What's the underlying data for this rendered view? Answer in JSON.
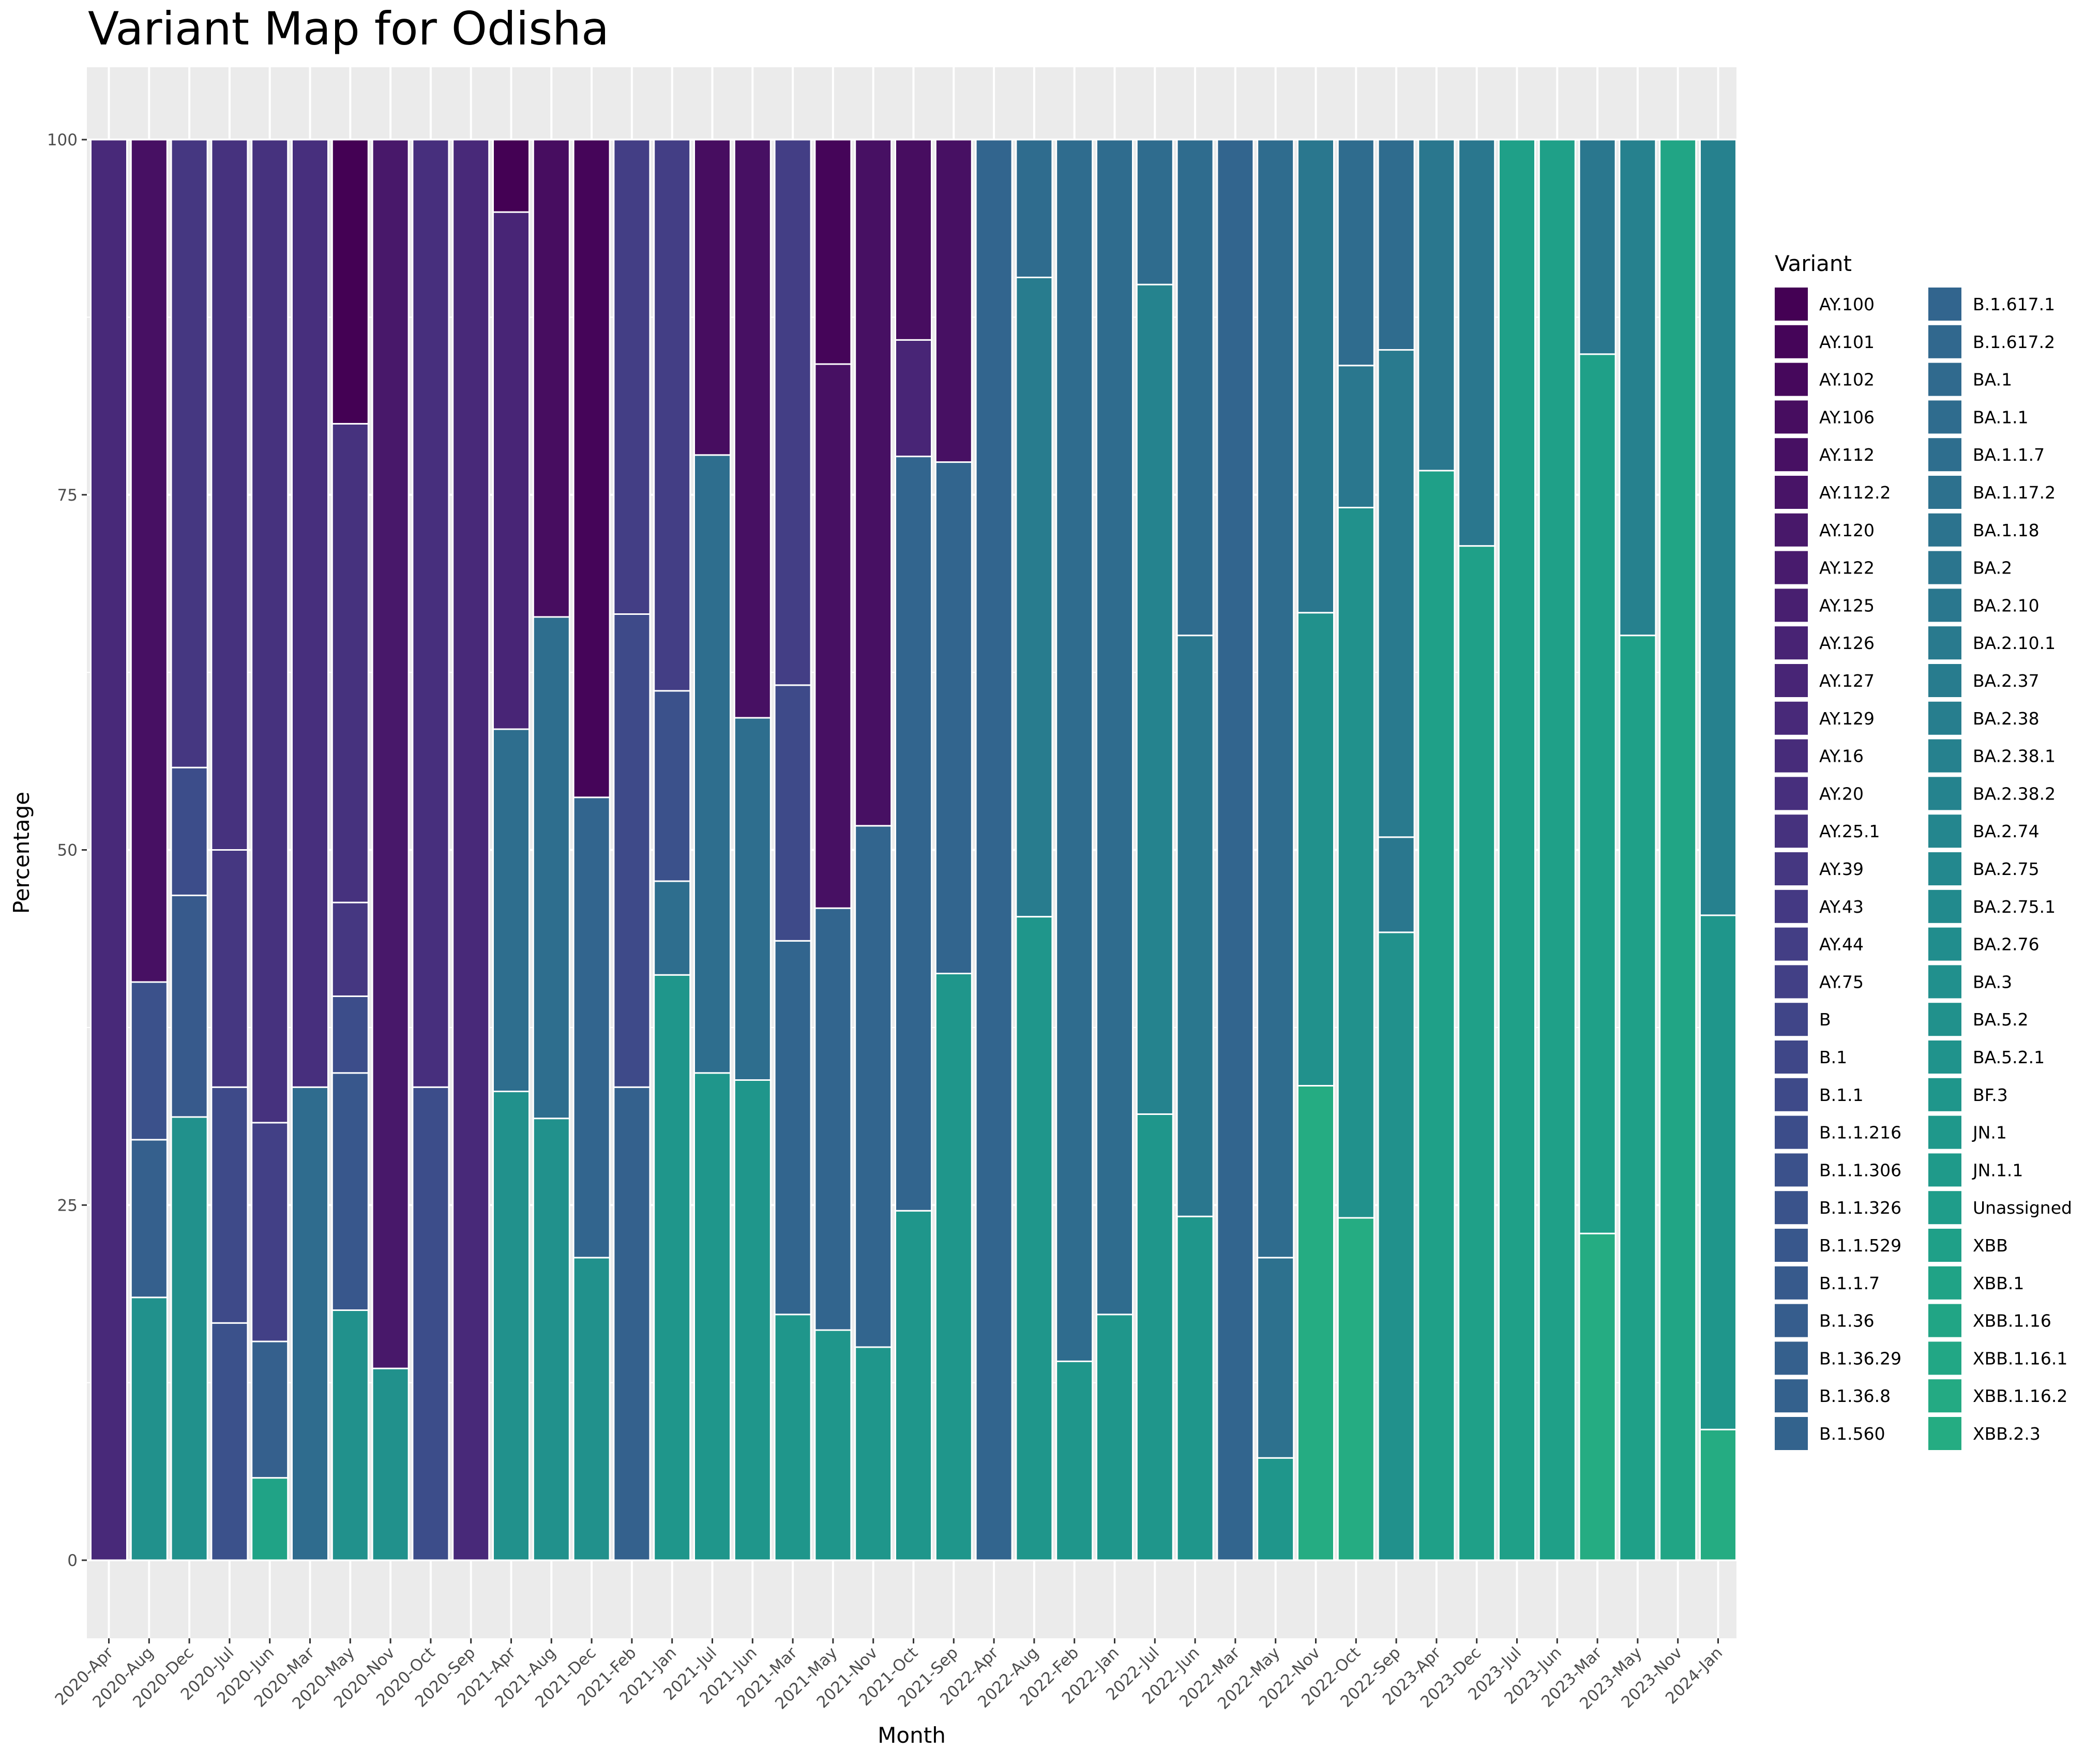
{
  "chart_data": {
    "type": "bar",
    "stacked": true,
    "title": "Variant Map for Odisha",
    "xlabel": "Month",
    "ylabel": "Percentage",
    "ylim": [
      0,
      100
    ],
    "yticks": [
      0,
      25,
      50,
      75,
      100
    ],
    "grid": true,
    "legend_title": "Variant",
    "legend_position": "right",
    "variants": [
      "AY.100",
      "AY.101",
      "AY.102",
      "AY.106",
      "AY.112",
      "AY.112.2",
      "AY.120",
      "AY.122",
      "AY.125",
      "AY.126",
      "AY.127",
      "AY.129",
      "AY.16",
      "AY.20",
      "AY.25.1",
      "AY.39",
      "AY.43",
      "AY.44",
      "AY.75",
      "B",
      "B.1",
      "B.1.1",
      "B.1.1.216",
      "B.1.1.306",
      "B.1.1.326",
      "B.1.1.529",
      "B.1.1.7",
      "B.1.36",
      "B.1.36.29",
      "B.1.36.8",
      "B.1.560",
      "B.1.617.1",
      "B.1.617.2",
      "BA.1",
      "BA.1.1",
      "BA.1.1.7",
      "BA.1.17.2",
      "BA.1.18",
      "BA.2",
      "BA.2.10",
      "BA.2.10.1",
      "BA.2.37",
      "BA.2.38",
      "BA.2.38.1",
      "BA.2.38.2",
      "BA.2.74",
      "BA.2.75",
      "BA.2.75.1",
      "BA.2.76",
      "BA.3",
      "BA.5.2",
      "BA.5.2.1",
      "BF.3",
      "JN.1",
      "JN.1.1",
      "Unassigned",
      "XBB",
      "XBB.1",
      "XBB.1.16",
      "XBB.1.16.1",
      "XBB.1.16.2",
      "XBB.2.3"
    ],
    "colors": [
      "#440154",
      "#450559",
      "#46085c",
      "#470d60",
      "#471063",
      "#481467",
      "#48186a",
      "#481b6d",
      "#481f70",
      "#482374",
      "#482576",
      "#482979",
      "#472c7a",
      "#472f7d",
      "#46327e",
      "#453781",
      "#443983",
      "#433e85",
      "#424086",
      "#404588",
      "#3f4788",
      "#3e4a89",
      "#3c4d8a",
      "#3b518b",
      "#3a538b",
      "#38578c",
      "#375a8c",
      "#365d8d",
      "#35608d",
      "#34618d",
      "#33638d",
      "#32658e",
      "#31688e",
      "#306a8e",
      "#2f6c8e",
      "#2e6e8e",
      "#2d718e",
      "#2c738e",
      "#2b758e",
      "#2a778e",
      "#297a8e",
      "#287c8e",
      "#277e8e",
      "#26818e",
      "#25838e",
      "#24868e",
      "#23888e",
      "#228a8d",
      "#218d8d",
      "#21908d",
      "#21918c",
      "#20938c",
      "#1f968b",
      "#1f988b",
      "#1f9a8a",
      "#1f9d8a",
      "#1fa088",
      "#20a386",
      "#21a585",
      "#22a785",
      "#24aa83",
      "#25ac82"
    ],
    "categories": [
      "2020-Apr",
      "2020-Aug",
      "2020-Dec",
      "2020-Jul",
      "2020-Jun",
      "2020-Mar",
      "2020-May",
      "2020-Nov",
      "2020-Oct",
      "2020-Sep",
      "2021-Apr",
      "2021-Aug",
      "2021-Dec",
      "2021-Feb",
      "2021-Jan",
      "2021-Jul",
      "2021-Jun",
      "2021-Mar",
      "2021-May",
      "2021-Nov",
      "2021-Oct",
      "2021-Sep",
      "2022-Apr",
      "2022-Aug",
      "2022-Feb",
      "2022-Jan",
      "2022-Jul",
      "2022-Jun",
      "2022-Mar",
      "2022-May",
      "2022-Nov",
      "2022-Oct",
      "2022-Sep",
      "2023-Apr",
      "2023-Dec",
      "2023-Jul",
      "2023-Jun",
      "2023-Mar",
      "2023-May",
      "2023-Nov",
      "2024-Jan"
    ],
    "bars": [
      [
        [
          "AY.129",
          100
        ]
      ],
      [
        [
          "BA.5.2",
          18.5
        ],
        [
          "B.1.36.29",
          11.1
        ],
        [
          "B.1.1.306",
          11.1
        ],
        [
          "AY.112",
          59.3
        ]
      ],
      [
        [
          "BA.5.2",
          31.2
        ],
        [
          "B.1.1.7",
          15.6
        ],
        [
          "B.1.1.216",
          9.0
        ],
        [
          "AY.39",
          44.2
        ]
      ],
      [
        [
          "B.1.1.306",
          16.7
        ],
        [
          "B.1.1",
          16.6
        ],
        [
          "AY.39",
          16.7
        ],
        [
          "AY.25.1",
          50.0
        ]
      ],
      [
        [
          "XBB.1",
          5.8
        ],
        [
          "B.1.36.29",
          9.6
        ],
        [
          "AY.75",
          15.4
        ],
        [
          "AY.25.1",
          69.2
        ]
      ],
      [
        [
          "BA.1.1",
          33.3
        ],
        [
          "AY.20",
          66.7
        ]
      ],
      [
        [
          "BA.5.2",
          17.6
        ],
        [
          "B.1.1.529",
          16.7
        ],
        [
          "B.1.1.216",
          5.4
        ],
        [
          "AY.39",
          6.6
        ],
        [
          "AY.25.1",
          33.7
        ],
        [
          "AY.100",
          20.0
        ]
      ],
      [
        [
          "BA.5.2",
          13.5
        ],
        [
          "AY.120",
          86.5
        ]
      ],
      [
        [
          "B.1.1.216",
          33.3
        ],
        [
          "AY.20",
          66.7
        ]
      ],
      [
        [
          "AY.129",
          100
        ]
      ],
      [
        [
          "BA.5.2",
          33.0
        ],
        [
          "BA.1.1.7",
          25.5
        ],
        [
          "AY.127",
          36.4
        ],
        [
          "AY.100",
          5.1
        ]
      ],
      [
        [
          "BA.5.2",
          31.1
        ],
        [
          "BA.1.1.7",
          35.3
        ],
        [
          "AY.106",
          33.6
        ]
      ],
      [
        [
          "BA.5.2",
          21.3
        ],
        [
          "B.1.617.1",
          32.4
        ],
        [
          "AY.101",
          46.3
        ]
      ],
      [
        [
          "B.1.36.8",
          33.3
        ],
        [
          "B.1.1",
          33.3
        ],
        [
          "AY.44",
          33.4
        ]
      ],
      [
        [
          "BF.3",
          41.2
        ],
        [
          "BA.1.1.7",
          6.6
        ],
        [
          "B.1.1.306",
          13.4
        ],
        [
          "AY.44",
          38.8
        ]
      ],
      [
        [
          "BF.3",
          34.3
        ],
        [
          "BA.1.1.7",
          43.5
        ],
        [
          "AY.106",
          22.2
        ]
      ],
      [
        [
          "BF.3",
          33.8
        ],
        [
          "BA.1.1.7",
          25.5
        ],
        [
          "AY.112",
          40.7
        ]
      ],
      [
        [
          "BF.3",
          17.3
        ],
        [
          "B.1.617.1",
          26.3
        ],
        [
          "B.1.1",
          18.0
        ],
        [
          "AY.44",
          38.4
        ]
      ],
      [
        [
          "BF.3",
          16.2
        ],
        [
          "B.1.617.1",
          29.7
        ],
        [
          "AY.112",
          38.3
        ],
        [
          "AY.101",
          15.8
        ]
      ],
      [
        [
          "BF.3",
          15.0
        ],
        [
          "B.1.617.1",
          36.7
        ],
        [
          "AY.112",
          48.3
        ]
      ],
      [
        [
          "BF.3",
          24.6
        ],
        [
          "B.1.617.1",
          53.1
        ],
        [
          "AY.127",
          8.2
        ],
        [
          "AY.106",
          14.1
        ]
      ],
      [
        [
          "BF.3",
          41.3
        ],
        [
          "B.1.617.1",
          36.0
        ],
        [
          "AY.112",
          22.7
        ]
      ],
      [
        [
          "B.1.617.1",
          100
        ]
      ],
      [
        [
          "BF.3",
          45.3
        ],
        [
          "BA.2.37",
          45.0
        ],
        [
          "BA.1.1",
          9.7
        ]
      ],
      [
        [
          "BF.3",
          14.0
        ],
        [
          "BA.1.1",
          86.0
        ]
      ],
      [
        [
          "BF.3",
          17.3
        ],
        [
          "BA.1.1",
          82.7
        ]
      ],
      [
        [
          "BF.3",
          31.4
        ],
        [
          "BA.2.38.2",
          58.4
        ],
        [
          "BA.1.1",
          10.2
        ]
      ],
      [
        [
          "BF.3",
          24.2
        ],
        [
          "BA.2.10",
          40.9
        ],
        [
          "BA.1.1",
          34.9
        ]
      ],
      [
        [
          "B.1.617.1",
          100
        ]
      ],
      [
        [
          "BF.3",
          7.2
        ],
        [
          "BA.1.17.2",
          14.1
        ],
        [
          "BA.1.1",
          78.7
        ]
      ],
      [
        [
          "XBB.2.3",
          33.4
        ],
        [
          "BA.5.2",
          33.3
        ],
        [
          "BA.2.10",
          33.3
        ]
      ],
      [
        [
          "XBB.2.3",
          24.1
        ],
        [
          "BA.5.2",
          50.0
        ],
        [
          "BA.2.10",
          10.0
        ],
        [
          "BA.1.1",
          15.9
        ]
      ],
      [
        [
          "BA.5.2",
          44.2
        ],
        [
          "BA.2.10",
          6.7
        ],
        [
          "BA.2.10.1",
          34.3
        ],
        [
          "BA.1.1",
          14.8
        ]
      ],
      [
        [
          "XBB",
          76.7
        ],
        [
          "BA.2.10",
          23.3
        ]
      ],
      [
        [
          "XBB",
          71.4
        ],
        [
          "BA.2.10",
          28.6
        ]
      ],
      [
        [
          "XBB",
          100
        ]
      ],
      [
        [
          "XBB",
          100
        ]
      ],
      [
        [
          "XBB.2.3",
          23.0
        ],
        [
          "XBB",
          61.9
        ],
        [
          "BA.2.10",
          15.1
        ]
      ],
      [
        [
          "XBB",
          65.1
        ],
        [
          "BA.2.38.1",
          34.9
        ]
      ],
      [
        [
          "XBB.1.16",
          100
        ]
      ],
      [
        [
          "XBB.2.3",
          9.2
        ],
        [
          "BF.3",
          36.2
        ],
        [
          "BA.2.38.1",
          54.6
        ]
      ]
    ]
  }
}
